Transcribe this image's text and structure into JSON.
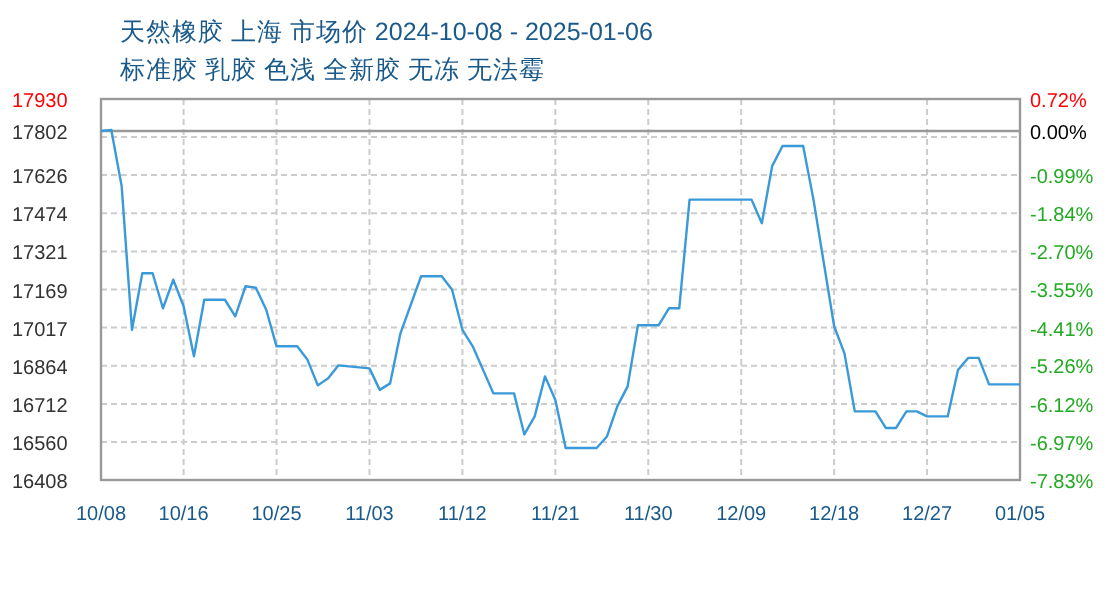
{
  "chart_data": {
    "type": "line",
    "title": "天然橡胶 上海 市场价 2024-10-08 - 2025-01-06",
    "subtitle": "标准胶 乳胶 色浅 全新胶 无冻 无法霉",
    "x": [
      "2024-10-08",
      "2024-10-09",
      "2024-10-10",
      "2024-10-11",
      "2024-10-12",
      "2024-10-13",
      "2024-10-14",
      "2024-10-15",
      "2024-10-16",
      "2024-10-17",
      "2024-10-18",
      "2024-10-20",
      "2024-10-21",
      "2024-10-22",
      "2024-10-23",
      "2024-10-24",
      "2024-10-25",
      "2024-10-27",
      "2024-10-28",
      "2024-10-29",
      "2024-10-30",
      "2024-10-31",
      "2024-11-03",
      "2024-11-04",
      "2024-11-05",
      "2024-11-06",
      "2024-11-08",
      "2024-11-10",
      "2024-11-11",
      "2024-11-12",
      "2024-11-13",
      "2024-11-15",
      "2024-11-17",
      "2024-11-18",
      "2024-11-19",
      "2024-11-20",
      "2024-11-21",
      "2024-11-22",
      "2024-11-25",
      "2024-11-26",
      "2024-11-27",
      "2024-11-28",
      "2024-11-29",
      "2024-12-01",
      "2024-12-02",
      "2024-12-03",
      "2024-12-04",
      "2024-12-10",
      "2024-12-11",
      "2024-12-12",
      "2024-12-13",
      "2024-12-15",
      "2024-12-16",
      "2024-12-18",
      "2024-12-19",
      "2024-12-20",
      "2024-12-22",
      "2024-12-23",
      "2024-12-24",
      "2024-12-25",
      "2024-12-26",
      "2024-12-27",
      "2024-12-29",
      "2024-12-30",
      "2024-12-31",
      "2025-01-01",
      "2025-01-02",
      "2025-01-05"
    ],
    "series": [
      {
        "color": "#3a9ad9",
        "values": [
          17802,
          17806,
          17582,
          17008,
          17234,
          17234,
          17094,
          17208,
          17102,
          16902,
          17128,
          17128,
          17062,
          17182,
          17176,
          17088,
          16942,
          16942,
          16888,
          16786,
          16814,
          16866,
          16854,
          16768,
          16794,
          16994,
          17222,
          17222,
          17168,
          17008,
          16942,
          16754,
          16754,
          16590,
          16662,
          16822,
          16728,
          16536,
          16536,
          16582,
          16702,
          16782,
          17026,
          17026,
          17094,
          17094,
          17528,
          17528,
          17434,
          17662,
          17742,
          17742,
          17528,
          17022,
          16914,
          16682,
          16682,
          16616,
          16616,
          16682,
          16682,
          16662,
          16662,
          16848,
          16896,
          16896,
          16790,
          16790
        ]
      }
    ],
    "xlim": [
      "2024-10-08",
      "2025-01-05"
    ],
    "xticks": [
      {
        "value": "2024-10-08",
        "label": "10/08"
      },
      {
        "value": "2024-10-16",
        "label": "10/16"
      },
      {
        "value": "2024-10-25",
        "label": "10/25"
      },
      {
        "value": "2024-11-03",
        "label": "11/03"
      },
      {
        "value": "2024-11-12",
        "label": "11/12"
      },
      {
        "value": "2024-11-21",
        "label": "11/21"
      },
      {
        "value": "2024-11-30",
        "label": "11/30"
      },
      {
        "value": "2024-12-09",
        "label": "12/09"
      },
      {
        "value": "2024-12-18",
        "label": "12/18"
      },
      {
        "value": "2024-12-27",
        "label": "12/27"
      },
      {
        "value": "2025-01-05",
        "label": "01/05"
      }
    ],
    "ylim": [
      16408,
      17930
    ],
    "yticks": [
      16408,
      16560,
      16712,
      16864,
      17017,
      17169,
      17321,
      17474,
      17626,
      {
        "value": 17778,
        "label": null
      },
      17802,
      17930
    ],
    "y2lim": [
      -7.83,
      0.72
    ],
    "y2ticks": [
      {
        "value": -7.83,
        "label": "-7.83%"
      },
      {
        "value": -6.97,
        "label": "-6.97%"
      },
      {
        "value": -6.12,
        "label": "-6.12%"
      },
      {
        "value": -5.26,
        "label": "-5.26%"
      },
      {
        "value": -4.41,
        "label": "-4.41%"
      },
      {
        "value": -3.55,
        "label": "-3.55%"
      },
      {
        "value": -2.7,
        "label": "-2.70%"
      },
      {
        "value": -1.84,
        "label": "-1.84%"
      },
      {
        "value": -0.99,
        "label": "-0.99%"
      },
      {
        "value": 0,
        "label": "0.00%"
      },
      {
        "value": 0.72,
        "label": "0.72%"
      }
    ],
    "ref_lines": [
      {
        "axis": "y",
        "value": 17802,
        "color": "#999999"
      }
    ],
    "grid": true
  }
}
